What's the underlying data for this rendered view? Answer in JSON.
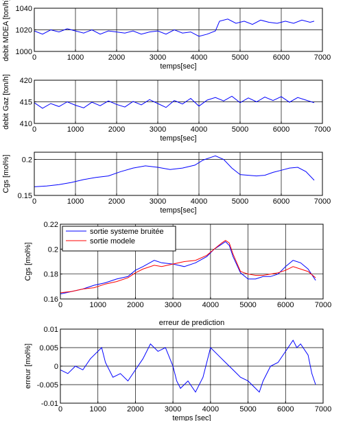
{
  "chart_data": [
    {
      "type": "line",
      "title": "",
      "xlabel": "temps[sec]",
      "ylabel": "debit MDEA [ton/h]",
      "xlim": [
        0,
        7000
      ],
      "ylim": [
        1000,
        1040
      ],
      "xticks": [
        0,
        1000,
        2000,
        3000,
        4000,
        5000,
        6000,
        7000
      ],
      "yticks": [
        1000,
        1020,
        1040
      ],
      "grid": true,
      "series": [
        {
          "color": "#0000ff",
          "x": [
            0,
            200,
            400,
            600,
            800,
            1000,
            1200,
            1400,
            1600,
            1800,
            2000,
            2200,
            2400,
            2600,
            2800,
            3000,
            3200,
            3400,
            3600,
            3800,
            4000,
            4200,
            4400,
            4500,
            4700,
            4900,
            5100,
            5300,
            5500,
            5700,
            5900,
            6100,
            6300,
            6500,
            6700,
            6800
          ],
          "y": [
            1019,
            1016,
            1020,
            1018,
            1021,
            1019,
            1017,
            1020,
            1016,
            1019,
            1018,
            1017,
            1019,
            1016,
            1018,
            1019,
            1016,
            1020,
            1017,
            1018,
            1014,
            1016,
            1019,
            1028,
            1030,
            1026,
            1028,
            1025,
            1029,
            1027,
            1026,
            1028,
            1026,
            1029,
            1027,
            1028
          ]
        }
      ]
    },
    {
      "type": "line",
      "title": "",
      "xlabel": "temps[sec]",
      "ylabel": "debit Gaz [ton/h]",
      "xlim": [
        0,
        7000
      ],
      "ylim": [
        410,
        420
      ],
      "xticks": [
        0,
        1000,
        2000,
        3000,
        4000,
        5000,
        6000,
        7000
      ],
      "yticks": [
        410,
        415,
        420
      ],
      "grid": true,
      "series": [
        {
          "color": "#0000ff",
          "x": [
            0,
            200,
            400,
            600,
            800,
            1000,
            1200,
            1400,
            1600,
            1800,
            2000,
            2200,
            2400,
            2600,
            2800,
            3000,
            3200,
            3400,
            3600,
            3800,
            4000,
            4200,
            4400,
            4600,
            4800,
            5000,
            5200,
            5400,
            5600,
            5800,
            6000,
            6200,
            6400,
            6600,
            6800
          ],
          "y": [
            414.8,
            413.5,
            414.6,
            413.9,
            415.0,
            414.2,
            413.6,
            414.9,
            414.1,
            415.2,
            414.4,
            413.8,
            415.1,
            414.3,
            415.5,
            414.6,
            413.7,
            415.3,
            414.5,
            415.8,
            414.0,
            415.4,
            416.0,
            415.2,
            416.3,
            414.8,
            415.9,
            415.0,
            416.1,
            415.3,
            416.2,
            414.9,
            416.0,
            415.4,
            414.8
          ]
        }
      ]
    },
    {
      "type": "line",
      "title": "",
      "xlabel": "temps[sec]",
      "ylabel": "Cgs [mol%]",
      "xlim": [
        0,
        7000
      ],
      "ylim": [
        0.15,
        0.21
      ],
      "xticks": [
        0,
        1000,
        2000,
        3000,
        4000,
        5000,
        6000,
        7000
      ],
      "yticks": [
        0.15,
        0.2
      ],
      "grid": true,
      "series": [
        {
          "color": "#0000ff",
          "x": [
            0,
            300,
            600,
            900,
            1200,
            1500,
            1800,
            2100,
            2400,
            2700,
            3000,
            3300,
            3600,
            3900,
            4100,
            4300,
            4400,
            4600,
            4800,
            5000,
            5200,
            5400,
            5600,
            5800,
            6000,
            6200,
            6400,
            6600,
            6800
          ],
          "y": [
            0.162,
            0.163,
            0.165,
            0.168,
            0.172,
            0.175,
            0.177,
            0.183,
            0.188,
            0.191,
            0.189,
            0.186,
            0.188,
            0.192,
            0.199,
            0.203,
            0.205,
            0.2,
            0.188,
            0.179,
            0.178,
            0.177,
            0.178,
            0.182,
            0.185,
            0.188,
            0.189,
            0.183,
            0.171
          ]
        }
      ]
    },
    {
      "type": "line",
      "title": "",
      "xlabel": "",
      "ylabel": "Cgs [mol%]",
      "xlim": [
        0,
        7000
      ],
      "ylim": [
        0.16,
        0.22
      ],
      "xticks": [
        0,
        1000,
        2000,
        3000,
        4000,
        5000,
        6000,
        7000
      ],
      "yticks": [
        0.16,
        0.18,
        0.2,
        0.22
      ],
      "grid": true,
      "legend": "top-left",
      "series": [
        {
          "name": "sortie systeme bruitée",
          "color": "#0000ff",
          "x": [
            0,
            300,
            600,
            900,
            1200,
            1500,
            1800,
            2000,
            2200,
            2500,
            2700,
            3000,
            3300,
            3600,
            3900,
            4100,
            4300,
            4400,
            4500,
            4600,
            4800,
            5000,
            5200,
            5400,
            5600,
            5800,
            6000,
            6200,
            6400,
            6600,
            6800
          ],
          "y": [
            0.164,
            0.166,
            0.168,
            0.171,
            0.173,
            0.176,
            0.178,
            0.183,
            0.186,
            0.191,
            0.189,
            0.188,
            0.186,
            0.189,
            0.194,
            0.2,
            0.204,
            0.206,
            0.203,
            0.194,
            0.181,
            0.176,
            0.176,
            0.178,
            0.178,
            0.18,
            0.186,
            0.191,
            0.189,
            0.184,
            0.175
          ]
        },
        {
          "name": "sortie modele",
          "color": "#ff0000",
          "x": [
            0,
            300,
            600,
            900,
            1200,
            1500,
            1800,
            2000,
            2200,
            2500,
            2700,
            3000,
            3300,
            3600,
            3900,
            4100,
            4300,
            4400,
            4500,
            4600,
            4800,
            5000,
            5200,
            5400,
            5600,
            5800,
            6000,
            6200,
            6400,
            6600,
            6800
          ],
          "y": [
            0.165,
            0.166,
            0.168,
            0.169,
            0.172,
            0.174,
            0.177,
            0.181,
            0.184,
            0.187,
            0.186,
            0.188,
            0.19,
            0.191,
            0.195,
            0.2,
            0.205,
            0.207,
            0.205,
            0.196,
            0.182,
            0.18,
            0.179,
            0.179,
            0.18,
            0.181,
            0.183,
            0.186,
            0.184,
            0.182,
            0.177
          ]
        }
      ]
    },
    {
      "type": "line",
      "title": "erreur de prediction",
      "xlabel": "temps [sec]",
      "ylabel": "erreur [mol%]",
      "xlim": [
        0,
        7000
      ],
      "ylim": [
        -0.01,
        0.01
      ],
      "xticks": [
        0,
        1000,
        2000,
        3000,
        4000,
        5000,
        6000,
        7000
      ],
      "yticks": [
        -0.01,
        -0.005,
        0,
        0.005,
        0.01
      ],
      "grid": true,
      "series": [
        {
          "color": "#0000ff",
          "x": [
            0,
            200,
            400,
            600,
            800,
            1000,
            1100,
            1200,
            1400,
            1600,
            1800,
            2000,
            2200,
            2400,
            2600,
            2800,
            3000,
            3100,
            3200,
            3400,
            3600,
            3800,
            4000,
            4200,
            4400,
            4600,
            4800,
            5000,
            5200,
            5300,
            5400,
            5600,
            5800,
            6000,
            6200,
            6300,
            6400,
            6600,
            6700,
            6800
          ],
          "y": [
            -0.001,
            -0.002,
            0.0,
            -0.001,
            0.002,
            0.004,
            0.005,
            0.001,
            -0.003,
            -0.002,
            -0.004,
            -0.001,
            0.002,
            0.006,
            0.004,
            0.005,
            0.0,
            -0.004,
            -0.006,
            -0.004,
            -0.007,
            -0.003,
            0.005,
            0.003,
            0.001,
            -0.001,
            -0.003,
            -0.004,
            -0.006,
            -0.007,
            -0.004,
            0.0,
            0.001,
            0.004,
            0.007,
            0.005,
            0.006,
            0.003,
            -0.002,
            -0.005
          ]
        }
      ]
    }
  ]
}
